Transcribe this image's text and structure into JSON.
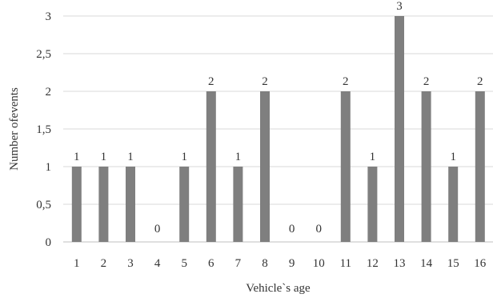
{
  "chart_data": {
    "type": "bar",
    "title": "",
    "xlabel": "Vehicle`s  age",
    "ylabel": "Number ofevents",
    "categories": [
      "1",
      "2",
      "3",
      "4",
      "5",
      "6",
      "7",
      "8",
      "9",
      "10",
      "11",
      "12",
      "13",
      "14",
      "15",
      "16"
    ],
    "values": [
      1,
      1,
      1,
      0,
      1,
      2,
      1,
      2,
      0,
      0,
      2,
      1,
      3,
      2,
      1,
      2
    ],
    "data_labels": [
      "1",
      "1",
      "1",
      "0",
      "1",
      "2",
      "1",
      "2",
      "0",
      "0",
      "2",
      "1",
      "3",
      "2",
      "1",
      "2"
    ],
    "ylim": [
      0,
      3
    ],
    "yticks": [
      0,
      0.5,
      1,
      1.5,
      2,
      2.5,
      3
    ],
    "ytick_labels": [
      "0",
      "0,5",
      "1",
      "1,5",
      "2",
      "2,5",
      "3"
    ],
    "grid": true,
    "legend": "none",
    "bar_color": "#7f7f7f"
  }
}
